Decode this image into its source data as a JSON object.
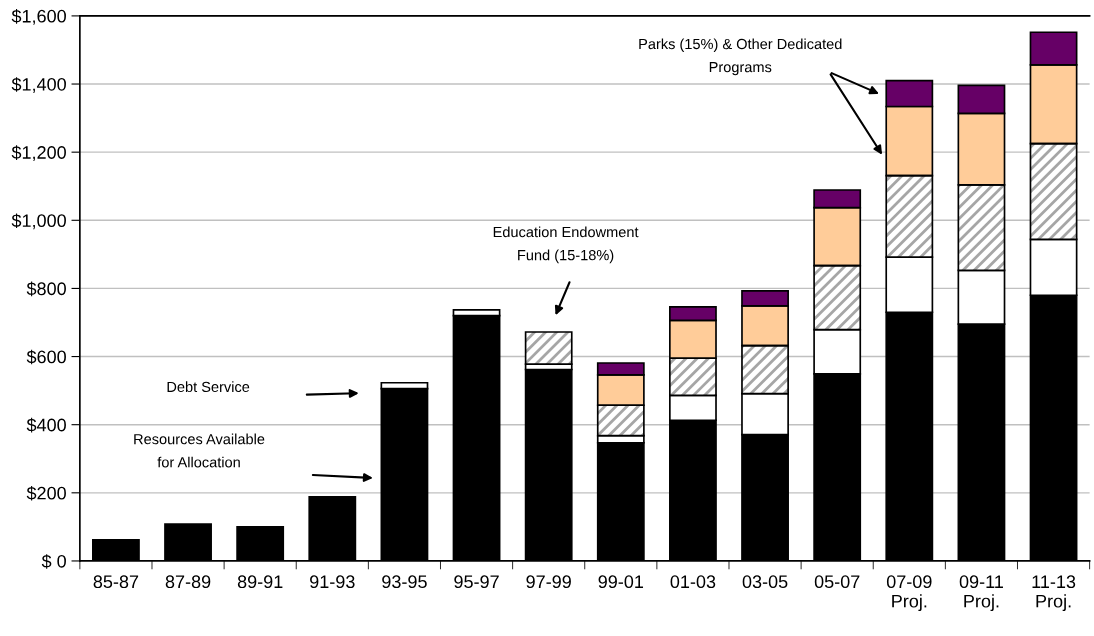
{
  "chart_data": {
    "type": "bar",
    "stacked": true,
    "categories": [
      "85-87",
      "87-89",
      "89-91",
      "91-93",
      "93-95",
      "95-97",
      "97-99",
      "99-01",
      "01-03",
      "03-05",
      "05-07",
      "07-09\nProj.",
      "09-11\nProj.",
      "11-13\nProj."
    ],
    "series": [
      {
        "color": "#000000",
        "values": [
          62,
          108,
          100,
          188,
          506,
          720,
          562,
          347,
          413,
          371,
          549,
          730,
          695,
          780
        ]
      },
      {
        "color": "#ffffff",
        "values": [
          null,
          null,
          null,
          null,
          17,
          17,
          16,
          21,
          73,
          120,
          130,
          162,
          158,
          164
        ]
      },
      {
        "color": "#a6a6a6",
        "values": [
          null,
          null,
          null,
          null,
          null,
          null,
          94,
          89,
          109,
          141,
          188,
          239,
          251,
          281
        ]
      },
      {
        "color": "#ffcc99",
        "values": [
          null,
          null,
          null,
          null,
          null,
          null,
          null,
          89,
          111,
          117,
          170,
          203,
          210,
          231
        ]
      },
      {
        "color": "#660066",
        "values": [
          null,
          null,
          null,
          null,
          null,
          null,
          null,
          35,
          40,
          44,
          52,
          76,
          82,
          96
        ]
      }
    ],
    "ylim": [
      0,
      1600
    ],
    "yticks": [
      {
        "value": 0,
        "label": "$ 0"
      },
      {
        "value": 200,
        "label": "$200"
      },
      {
        "value": 400,
        "label": "$400"
      },
      {
        "value": 600,
        "label": "$600"
      },
      {
        "value": 800,
        "label": "$800"
      },
      {
        "value": 1000,
        "label": "$1,000"
      },
      {
        "value": 1200,
        "label": "$1,200"
      },
      {
        "value": 1400,
        "label": "$1,400"
      },
      {
        "value": 1600,
        "label": "$1,600"
      }
    ],
    "grid": "y",
    "annotations": [
      "Debt Service",
      "Resources Available\nfor Allocation",
      "Education Endowment\nFund (15-18%)",
      "Parks (15%) & Other Dedicated\nPrograms"
    ]
  }
}
